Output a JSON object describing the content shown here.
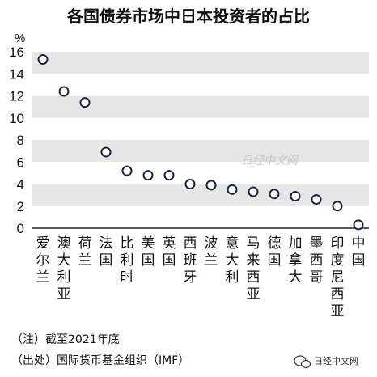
{
  "chart_data": {
    "type": "scatter",
    "title": "各国债券市场中日本投资者的占比",
    "ylabel": "%",
    "ylim": [
      0,
      16
    ],
    "yticks": [
      0,
      2,
      4,
      6,
      8,
      10,
      12,
      14,
      16
    ],
    "grid": "alternating horizontal bands",
    "categories": [
      "爱尔兰",
      "澳大利亚",
      "荷兰",
      "法国",
      "比利时",
      "美国",
      "英国",
      "西班牙",
      "波兰",
      "意大利",
      "马来西亚",
      "德国",
      "加拿大",
      "墨西哥",
      "印度尼西亚",
      "中国"
    ],
    "values": [
      15.3,
      12.4,
      11.4,
      6.9,
      5.2,
      4.8,
      4.8,
      4.0,
      3.9,
      3.5,
      3.3,
      3.1,
      2.9,
      2.6,
      2.0,
      0.3
    ]
  },
  "notes": {
    "note": "（注）截至2021年底",
    "source": "（出处）国际货币基金组织（IMF）"
  },
  "watermark": "日经中文网",
  "brand": {
    "icon": "wechat-icon",
    "label": "日经中文网"
  },
  "colors": {
    "band": "#e6e6e6",
    "marker_stroke": "#1a2440",
    "text": "#111111"
  }
}
